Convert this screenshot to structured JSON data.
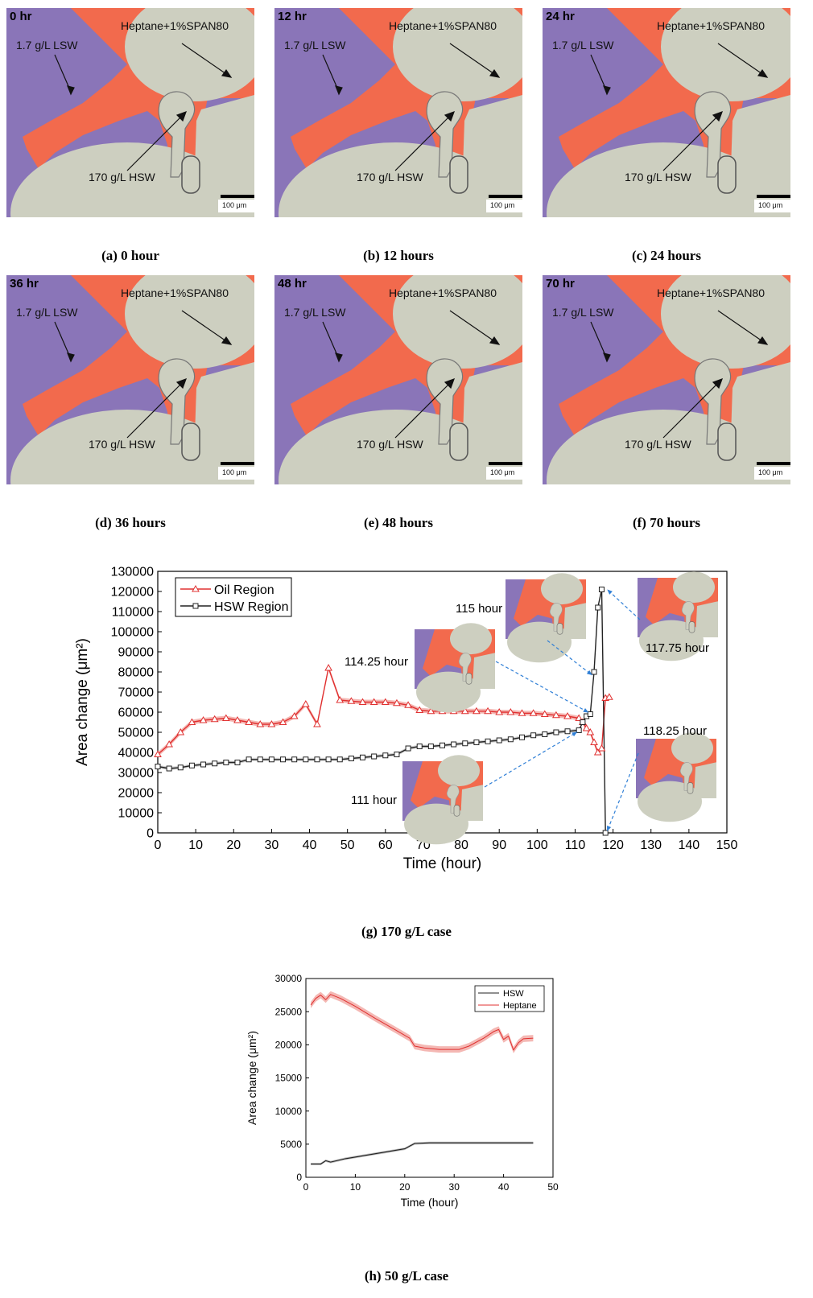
{
  "panels": [
    {
      "time": "0 hr",
      "caption": "(a) 0 hour"
    },
    {
      "time": "12 hr",
      "caption": "(b) 12 hours"
    },
    {
      "time": "24 hr",
      "caption": "(c) 24 hours"
    },
    {
      "time": "36 hr",
      "caption": "(d) 36 hours"
    },
    {
      "time": "48 hr",
      "caption": "(e) 48 hours"
    },
    {
      "time": "70 hr",
      "caption": "(f) 70 hours"
    }
  ],
  "panel_labels": {
    "lsw": "1.7 g/L LSW",
    "heptane": "Heptane+1%SPAN80",
    "hsw": "170 g/L HSW",
    "scale": "100 μm"
  },
  "colors": {
    "lsw": "#8a75b8",
    "oil": "#f26a4d",
    "grain": "#cdcfc0",
    "hsw_line": "#222222",
    "oil_line": "#e03030",
    "oil_band": "#f4b8b4",
    "arrow": "#2f7fd6"
  },
  "chart_data": [
    {
      "type": "line",
      "caption": "(g) 170 g/L case",
      "xlabel": "Time (hour)",
      "ylabel": "Area change (μm²)",
      "xlim": [
        0,
        150
      ],
      "ylim": [
        0,
        130000
      ],
      "xticks": [
        0,
        10,
        20,
        30,
        40,
        50,
        60,
        70,
        80,
        90,
        100,
        110,
        120,
        130,
        140,
        150
      ],
      "yticks": [
        0,
        10000,
        20000,
        30000,
        40000,
        50000,
        60000,
        70000,
        80000,
        90000,
        100000,
        110000,
        120000,
        130000
      ],
      "legend_position": "top-left",
      "series": [
        {
          "name": "Oil Region",
          "marker": "triangle",
          "x": [
            0,
            3,
            6,
            9,
            12,
            15,
            18,
            21,
            24,
            27,
            30,
            33,
            36,
            39,
            42,
            45,
            48,
            51,
            54,
            57,
            60,
            63,
            66,
            69,
            72,
            75,
            78,
            81,
            84,
            87,
            90,
            93,
            96,
            99,
            102,
            105,
            108,
            111,
            112,
            113,
            114,
            115,
            116,
            117,
            118,
            119
          ],
          "y": [
            39000,
            44000,
            50000,
            55000,
            56000,
            56500,
            57000,
            56000,
            55000,
            54000,
            54000,
            55000,
            58000,
            64000,
            54000,
            82000,
            66000,
            65500,
            65000,
            65000,
            65000,
            64500,
            63500,
            61000,
            60500,
            60500,
            60500,
            60500,
            60500,
            60500,
            60000,
            60000,
            59500,
            59500,
            59000,
            58500,
            58000,
            57000,
            55000,
            52000,
            50000,
            45000,
            40000,
            42000,
            67000,
            67500
          ]
        },
        {
          "name": "HSW Region",
          "marker": "square",
          "x": [
            0,
            3,
            6,
            9,
            12,
            15,
            18,
            21,
            24,
            27,
            30,
            33,
            36,
            39,
            42,
            45,
            48,
            51,
            54,
            57,
            60,
            63,
            66,
            69,
            72,
            75,
            78,
            81,
            84,
            87,
            90,
            93,
            96,
            99,
            102,
            105,
            108,
            111,
            112,
            113,
            114,
            115,
            116,
            117,
            118
          ],
          "y": [
            33000,
            32000,
            32500,
            33500,
            34000,
            34500,
            35000,
            35000,
            36500,
            36500,
            36500,
            36500,
            36500,
            36500,
            36500,
            36500,
            36500,
            37000,
            37500,
            38000,
            38500,
            39000,
            42000,
            43000,
            43000,
            43500,
            44000,
            44500,
            45000,
            45500,
            46000,
            46500,
            47500,
            48500,
            49000,
            50000,
            50500,
            51000,
            55000,
            58000,
            59000,
            80000,
            112000,
            121000,
            0
          ]
        }
      ],
      "annotations": [
        "115 hour",
        "117.75 hour",
        "114.25 hour",
        "118.25 hour",
        "111 hour"
      ]
    },
    {
      "type": "line",
      "caption": "(h) 50 g/L case",
      "xlabel": "Time (hour)",
      "ylabel": "Area change (μm²)",
      "xlim": [
        0,
        50
      ],
      "ylim": [
        0,
        30000
      ],
      "xticks": [
        0,
        10,
        20,
        30,
        40,
        50
      ],
      "yticks": [
        0,
        5000,
        10000,
        15000,
        20000,
        25000,
        30000
      ],
      "legend_position": "top-right",
      "series": [
        {
          "name": "HSW",
          "x": [
            1,
            3,
            4,
            5,
            8,
            12,
            16,
            20,
            22,
            25,
            28,
            32,
            36,
            40,
            43,
            46
          ],
          "y": [
            2000,
            2000,
            2500,
            2300,
            2800,
            3300,
            3800,
            4300,
            5100,
            5200,
            5200,
            5200,
            5200,
            5200,
            5200,
            5200
          ]
        },
        {
          "name": "Heptane",
          "x": [
            1,
            2,
            3,
            4,
            5,
            7,
            10,
            14,
            18,
            21,
            22,
            24,
            27,
            31,
            33,
            36,
            38,
            39,
            40,
            41,
            42,
            43,
            44,
            46
          ],
          "y": [
            26000,
            27000,
            27500,
            26800,
            27600,
            27000,
            25800,
            24000,
            22300,
            21000,
            19800,
            19500,
            19300,
            19300,
            19800,
            21000,
            22000,
            22300,
            20800,
            21300,
            19200,
            20300,
            20900,
            21000
          ]
        }
      ]
    }
  ]
}
